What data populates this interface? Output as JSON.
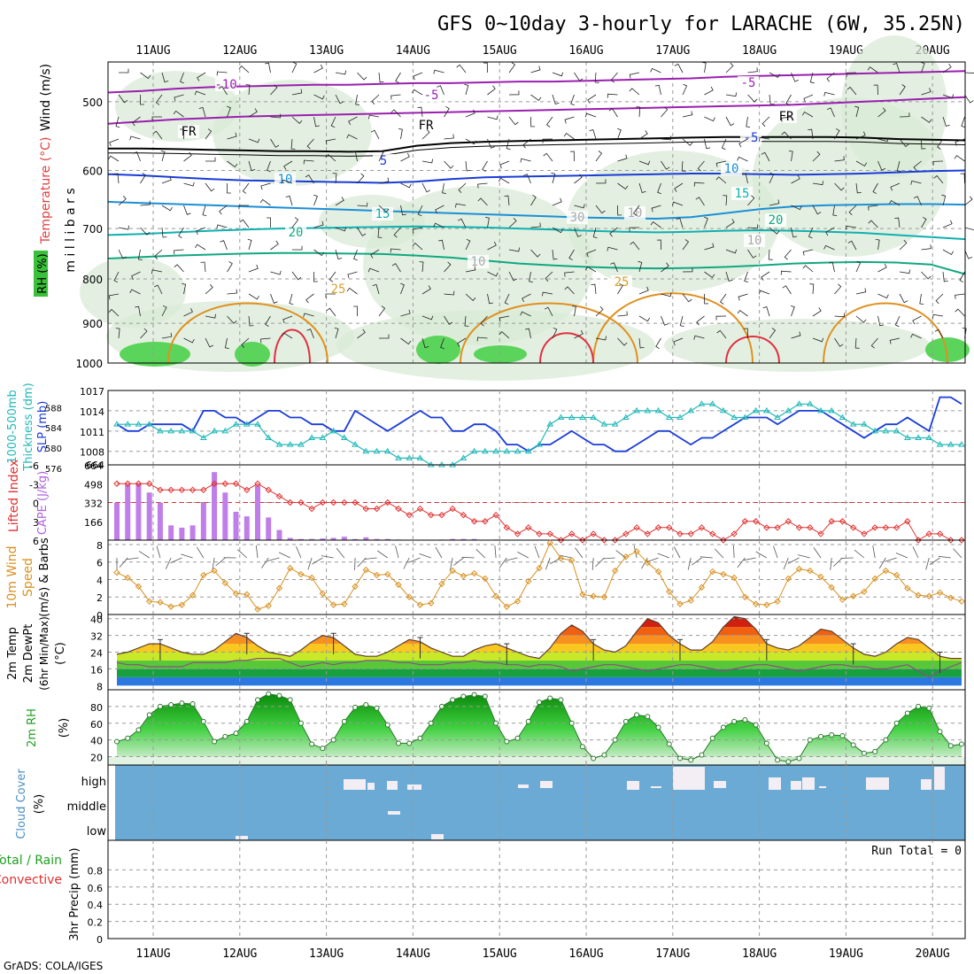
{
  "title": "GFS 0~10day 3-hourly for LARACHE (6W, 35.25N)",
  "footer": "GrADS: COLA/IGES",
  "date_labels": [
    "11AUG",
    "12AUG",
    "13AUG",
    "14AUG",
    "15AUG",
    "16AUG",
    "17AUG",
    "18AUG",
    "19AUG",
    "20AUG"
  ],
  "chart_data": [
    {
      "panel": "upper-air",
      "type": "heatmap",
      "ylabel": "m i l l i b a r s",
      "y_ticks": [
        500,
        600,
        700,
        800,
        900,
        1000
      ],
      "ylim": [
        450,
        1000
      ],
      "y_scale": "log",
      "legend": {
        "wind": "Wind (m/s)",
        "temperature": "Temperature (°C)",
        "rh": "RH (%)"
      },
      "contour_labels": [
        "-10",
        "-5",
        "-5",
        "FR",
        "FR",
        "FR",
        "-5",
        "5",
        "10",
        "10",
        "15",
        "15",
        "20",
        "20",
        "25",
        "25",
        "30",
        "10",
        "10",
        "10"
      ],
      "isotherms": [
        {
          "label": "-10",
          "color": "#9a1fb0",
          "p": [
            488,
            486,
            483,
            481,
            480,
            479,
            478,
            478,
            477,
            476,
            476,
            475,
            474,
            474,
            473,
            472,
            471,
            470,
            468,
            467,
            466,
            465,
            464,
            463,
            462,
            461
          ]
        },
        {
          "label": "-5",
          "color": "#9a1fb0",
          "p": [
            530,
            527,
            524,
            522,
            520,
            519,
            518,
            517,
            516,
            515,
            514,
            513,
            512,
            511,
            510,
            509,
            508,
            507,
            506,
            505,
            504,
            502,
            500,
            498,
            496,
            494
          ]
        },
        {
          "label": "FR",
          "color": "#000000",
          "p": [
            566,
            566,
            567,
            568,
            569,
            570,
            570,
            571,
            570,
            562,
            558,
            556,
            555,
            554,
            553,
            552,
            551,
            550,
            549,
            549,
            549,
            549,
            550,
            552,
            553,
            554
          ]
        },
        {
          "label": "5",
          "color": "#1a3cd8",
          "p": [
            606,
            608,
            611,
            614,
            616,
            617,
            618,
            619,
            620,
            618,
            614,
            611,
            610,
            609,
            608,
            607,
            606,
            605,
            605,
            606,
            607,
            606,
            605,
            603,
            601,
            600
          ]
        },
        {
          "label": "10",
          "color": "#1c8fd6",
          "p": [
            652,
            654,
            656,
            658,
            660,
            662,
            664,
            666,
            668,
            670,
            672,
            674,
            676,
            678,
            680,
            681,
            682,
            679,
            672,
            665,
            660,
            658,
            657,
            656,
            656,
            657
          ]
        },
        {
          "label": "15",
          "color": "#10b0b0",
          "p": [
            712,
            710,
            707,
            704,
            702,
            700,
            699,
            698,
            697,
            696,
            697,
            698,
            700,
            702,
            704,
            706,
            707,
            706,
            704,
            703,
            704,
            706,
            708,
            712,
            716,
            720
          ]
        },
        {
          "label": "20",
          "color": "#10a880",
          "p": [
            758,
            755,
            752,
            750,
            748,
            747,
            747,
            748,
            749,
            752,
            756,
            762,
            768,
            772,
            775,
            777,
            778,
            777,
            775,
            772,
            768,
            766,
            765,
            766,
            770,
            790
          ]
        }
      ]
    },
    {
      "panel": "thickness-slp",
      "type": "line",
      "ylabel_left": "1000-500mb Thickness (dm)",
      "ylabel_right": "SLP (mb)",
      "y_ticks_slp": [
        "1017",
        "1014",
        "1011",
        "1008"
      ],
      "y_ticks_thk": [
        "588",
        "584",
        "580",
        "576"
      ],
      "bottom_value": "664",
      "ylim": [
        1006,
        1017
      ],
      "series": [
        {
          "color": "#1a3cd8",
          "values": [
            1012,
            1011,
            1011,
            1012,
            1012,
            1012,
            1012,
            1011,
            1014,
            1014,
            1013,
            1013,
            1012,
            1013,
            1014,
            1014,
            1013,
            1013,
            1012,
            1012,
            1011,
            1011,
            1014,
            1013,
            1012,
            1011,
            1012,
            1013,
            1014,
            1013,
            1013,
            1011,
            1011,
            1012,
            1012,
            1011,
            1009,
            1009,
            1008,
            1009,
            1009,
            1010,
            1011,
            1010,
            1009,
            1009,
            1008,
            1008,
            1009,
            1010,
            1011,
            1011,
            1010,
            1009,
            1010,
            1010,
            1011,
            1012,
            1013,
            1013,
            1013,
            1012,
            1013,
            1014,
            1014,
            1014,
            1013,
            1012,
            1011,
            1010,
            1011,
            1012,
            1012,
            1013,
            1012,
            1011,
            1016,
            1016,
            1015
          ]
        },
        {
          "color": "#22b8b8",
          "values": [
            1012,
            1012,
            1012,
            1012,
            1011,
            1011,
            1011,
            1011,
            1010,
            1011,
            1011,
            1012,
            1012,
            1012,
            1010,
            1009,
            1009,
            1009,
            1010,
            1010,
            1011,
            1010,
            1009,
            1008,
            1008,
            1008,
            1007,
            1007,
            1007,
            1006,
            1006,
            1006,
            1007,
            1008,
            1008,
            1008,
            1008,
            1008,
            1008,
            1009,
            1012,
            1013,
            1013,
            1013,
            1013,
            1012,
            1012,
            1013,
            1014,
            1014,
            1014,
            1013,
            1013,
            1014,
            1015,
            1015,
            1014,
            1013,
            1013,
            1014,
            1014,
            1013,
            1014,
            1015,
            1015,
            1014,
            1014,
            1013,
            1012,
            1012,
            1011,
            1011,
            1011,
            1010,
            1010,
            1010,
            1009,
            1009,
            1009
          ]
        }
      ]
    },
    {
      "panel": "lifted-cape",
      "type": "bar",
      "ylabel_left": "Lifted Index",
      "ylabel_right": "CAPE (J/kg)",
      "y_ticks_li": [
        "-6",
        "-3",
        "0",
        "3",
        "6"
      ],
      "y_ticks_cape": [
        "664",
        "498",
        "332",
        "166"
      ],
      "ylim_li": [
        6,
        -6
      ],
      "cape_values": [
        330,
        490,
        500,
        420,
        330,
        130,
        110,
        130,
        330,
        600,
        420,
        250,
        210,
        480,
        200,
        90,
        20,
        10,
        10,
        15,
        20,
        30,
        10,
        25,
        10,
        10,
        5,
        0,
        0,
        0,
        5,
        10,
        10,
        10,
        0,
        5,
        0,
        0,
        0,
        0,
        0,
        0,
        0,
        0,
        0,
        0,
        0,
        0,
        0,
        0,
        0,
        0,
        0,
        0,
        0,
        0,
        0,
        0,
        0,
        0,
        0,
        0,
        0,
        0,
        0,
        0,
        0,
        0,
        0,
        0,
        0,
        0,
        0,
        0,
        0,
        0,
        0,
        0,
        0
      ],
      "li_values": [
        -3,
        -3,
        -3,
        -3,
        -2,
        -2,
        -2,
        -2,
        -2,
        -3,
        -3,
        -3,
        -2,
        -3,
        -2,
        -1,
        0,
        0,
        1,
        0,
        0,
        0,
        0,
        1,
        1,
        0,
        1,
        2,
        1,
        2,
        2,
        1,
        2,
        3,
        3,
        2,
        4,
        5,
        4,
        5,
        5,
        6,
        5,
        6,
        5,
        6,
        6,
        5,
        4,
        5,
        4,
        4,
        5,
        5,
        4,
        5,
        6,
        5,
        3,
        3,
        4,
        4,
        3,
        4,
        4,
        5,
        3,
        3,
        4,
        5,
        4,
        4,
        4,
        3,
        6,
        5,
        5,
        6,
        6
      ],
      "bars_color": "#c07ee8",
      "line_color": "#e03030"
    },
    {
      "panel": "wind10m",
      "type": "line",
      "ylabel": "10m Wind Speed (m/s) & Barbs",
      "y_ticks": [
        "8",
        "6",
        "4",
        "2",
        "0"
      ],
      "ylim": [
        0,
        8.5
      ],
      "values": [
        4.8,
        4.2,
        3.2,
        1.5,
        1.4,
        0.9,
        1.1,
        2.2,
        4.5,
        5.0,
        3.6,
        2.4,
        2.3,
        0.6,
        1.0,
        3.0,
        5.3,
        4.6,
        4.2,
        2.4,
        1.1,
        1.2,
        3.2,
        5.1,
        4.5,
        4.6,
        3.4,
        2.0,
        1.1,
        1.3,
        3.5,
        5.0,
        4.4,
        4.7,
        4.1,
        2.1,
        0.9,
        1.5,
        3.8,
        5.3,
        8.2,
        6.4,
        6.2,
        2.3,
        2.1,
        2.0,
        5.0,
        6.6,
        7.2,
        5.9,
        4.9,
        2.6,
        1.2,
        1.6,
        3.1,
        4.9,
        4.6,
        4.2,
        2.0,
        1.2,
        1.1,
        1.5,
        4.1,
        5.2,
        5.0,
        4.3,
        3.1,
        1.7,
        2.1,
        2.6,
        4.1,
        5.0,
        4.5,
        3.0,
        2.2,
        2.1,
        2.5,
        1.9,
        1.5
      ]
    },
    {
      "panel": "temperature",
      "type": "area",
      "ylabel": "2m Temp 2m DewPt (6hr Min/Max) (°C)",
      "y_ticks": [
        "40",
        "32",
        "24",
        "16",
        "8"
      ],
      "ylim": [
        6,
        42
      ],
      "temp": [
        23,
        24,
        26,
        28,
        28,
        26,
        24,
        23,
        23,
        25,
        29,
        33,
        31,
        27,
        24,
        23,
        22,
        25,
        29,
        32,
        31,
        27,
        23,
        22,
        22,
        24,
        27,
        30,
        29,
        26,
        24,
        22,
        22,
        25,
        27,
        28,
        26,
        24,
        22,
        21,
        26,
        33,
        37,
        34,
        28,
        25,
        24,
        27,
        34,
        40,
        38,
        32,
        28,
        25,
        25,
        29,
        36,
        41,
        40,
        35,
        28,
        26,
        25,
        27,
        31,
        35,
        34,
        30,
        26,
        23,
        22,
        24,
        28,
        31,
        30,
        26,
        22,
        21,
        21
      ],
      "dewpt": [
        19,
        18,
        18,
        17,
        17,
        17,
        17,
        19,
        19,
        19,
        19,
        20,
        20,
        21,
        21,
        21,
        19,
        17,
        18,
        19,
        18,
        19,
        19,
        20,
        20,
        20,
        19,
        19,
        18,
        18,
        18,
        19,
        19,
        20,
        19,
        19,
        18,
        18,
        17,
        18,
        18,
        17,
        15,
        16,
        17,
        18,
        18,
        17,
        16,
        15,
        16,
        17,
        18,
        18,
        17,
        16,
        15,
        16,
        17,
        18,
        18,
        17,
        16,
        15,
        16,
        17,
        18,
        18,
        17,
        17,
        16,
        16,
        17,
        18,
        15,
        12,
        15,
        17,
        19
      ]
    },
    {
      "panel": "rh2m",
      "type": "area",
      "ylabel": "2m RH (%)",
      "y_ticks": [
        "80",
        "60",
        "40",
        "20"
      ],
      "ylim": [
        10,
        100
      ],
      "values": [
        38,
        42,
        52,
        70,
        80,
        82,
        84,
        83,
        62,
        38,
        44,
        48,
        62,
        88,
        95,
        93,
        88,
        60,
        35,
        30,
        40,
        62,
        79,
        82,
        78,
        58,
        36,
        36,
        42,
        60,
        80,
        88,
        92,
        94,
        92,
        60,
        38,
        42,
        62,
        85,
        90,
        88,
        60,
        32,
        18,
        22,
        40,
        62,
        70,
        68,
        55,
        35,
        18,
        16,
        22,
        42,
        55,
        62,
        64,
        58,
        36,
        16,
        14,
        18,
        40,
        44,
        46,
        45,
        34,
        24,
        26,
        40,
        60,
        72,
        80,
        78,
        50,
        33,
        35
      ]
    },
    {
      "panel": "cloud",
      "type": "heatmap",
      "ylabel": "Cloud Cover (%)",
      "levels": [
        "high",
        "middle",
        "low"
      ]
    },
    {
      "panel": "precip",
      "type": "bar",
      "ylabel_left": "Total / Rain",
      "ylabel_left2": "Convective",
      "ylabel": "3hr Precip (mm)",
      "y_ticks": [
        "0.8",
        "0.6",
        "0.4",
        "0.2",
        "0"
      ],
      "ylim": [
        0,
        1
      ],
      "values": [
        0,
        0,
        0,
        0,
        0,
        0,
        0,
        0,
        0,
        0,
        0,
        0,
        0,
        0,
        0,
        0,
        0,
        0,
        0,
        0,
        0,
        0,
        0,
        0,
        0,
        0,
        0,
        0,
        0,
        0,
        0,
        0,
        0,
        0,
        0,
        0,
        0,
        0,
        0,
        0,
        0,
        0,
        0,
        0,
        0,
        0,
        0,
        0,
        0,
        0,
        0,
        0,
        0,
        0,
        0,
        0,
        0,
        0,
        0,
        0,
        0,
        0,
        0,
        0,
        0,
        0,
        0,
        0,
        0,
        0,
        0,
        0,
        0,
        0,
        0,
        0,
        0,
        0,
        0
      ],
      "run_total": "Run Total = 0"
    }
  ],
  "panel_labels": {
    "upper_air": {
      "wind": "Wind (m/s)",
      "temp": "Temperature (°C)",
      "rh": "RH (%)",
      "mb": "m i l l i b a r s"
    },
    "thickness": {
      "thk1": "1000-500mb",
      "thk2": "Thickness (dm)",
      "slp": "SLP (mb)"
    },
    "li_cape": {
      "li": "Lifted Index",
      "cape": "CAPE (J/kg)"
    },
    "wind10": {
      "l1": "10m Wind",
      "l2": "Speed",
      "l3": "(m/s) & Barbs"
    },
    "temp": {
      "l1": "2m Temp",
      "l2": "2m DewPt",
      "l3": "(6hr Min/Max)",
      "l4": "(°C)"
    },
    "rh": {
      "l1": "2m RH",
      "l2": "(%)"
    },
    "cloud": {
      "l1": "Cloud Cover",
      "l2": "(%)"
    },
    "precip": {
      "l1": "Total / Rain",
      "l2": "Convective",
      "l3": "3hr Precip (mm)"
    }
  }
}
